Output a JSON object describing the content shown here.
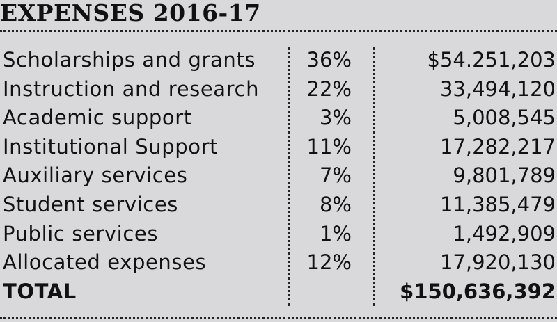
{
  "title": "EXPENSES 2016-17",
  "rows": [
    {
      "label": "Scholarships and grants",
      "percent": "36%",
      "amount": "$54.251,203"
    },
    {
      "label": "Instruction and research",
      "percent": "22%",
      "amount": "33,494,120"
    },
    {
      "label": "Academic support",
      "percent": "3%",
      "amount": "5,008,545"
    },
    {
      "label": "Institutional Support",
      "percent": "11%",
      "amount": "17,282,217"
    },
    {
      "label": "Auxiliary services",
      "percent": "7%",
      "amount": "9,801,789"
    },
    {
      "label": "Student services",
      "percent": "8%",
      "amount": "11,385,479"
    },
    {
      "label": "Public services",
      "percent": "1%",
      "amount": "1,492,909"
    },
    {
      "label": "Allocated expenses",
      "percent": "12%",
      "amount": "17,920,130"
    }
  ],
  "total": {
    "label": "TOTAL",
    "amount": "$150,636,392"
  }
}
